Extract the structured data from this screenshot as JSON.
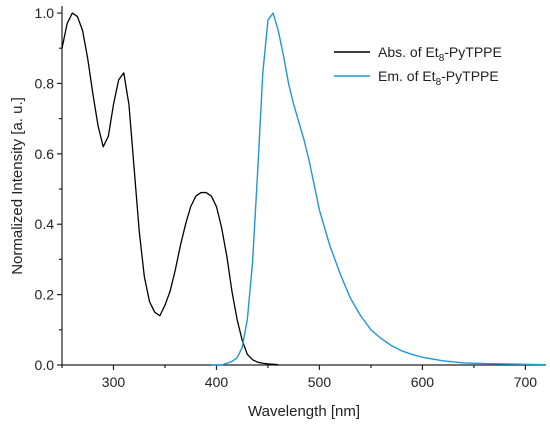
{
  "chart_data": {
    "type": "line",
    "xlabel": "Wavelength [nm]",
    "ylabel": "Normalized Intensity [a. u.]",
    "xlim": [
      250,
      720
    ],
    "ylim": [
      0.0,
      1.02
    ],
    "xticks": [
      300,
      400,
      500,
      600,
      700
    ],
    "xtick_labels": [
      "300",
      "400",
      "500",
      "600",
      "700"
    ],
    "yticks": [
      0.0,
      0.2,
      0.4,
      0.6,
      0.8,
      1.0
    ],
    "ytick_labels": [
      "0.0",
      "0.2",
      "0.4",
      "0.6",
      "0.8",
      "1.0"
    ],
    "legend_position": "top-right",
    "grid": false,
    "series": [
      {
        "name_main": "Abs. of Et",
        "name_sub": "8",
        "name_tail": "-PyTPPE",
        "color": "#000000",
        "x": [
          250,
          255,
          260,
          265,
          270,
          275,
          280,
          285,
          290,
          295,
          300,
          305,
          310,
          315,
          320,
          325,
          330,
          335,
          340,
          345,
          350,
          355,
          360,
          365,
          370,
          375,
          380,
          385,
          390,
          395,
          400,
          405,
          410,
          415,
          420,
          425,
          430,
          435,
          440,
          445,
          450,
          455,
          460
        ],
        "y": [
          0.9,
          0.97,
          1.0,
          0.99,
          0.95,
          0.87,
          0.77,
          0.68,
          0.62,
          0.65,
          0.74,
          0.81,
          0.83,
          0.74,
          0.56,
          0.38,
          0.25,
          0.18,
          0.15,
          0.14,
          0.17,
          0.21,
          0.27,
          0.34,
          0.4,
          0.45,
          0.48,
          0.49,
          0.49,
          0.48,
          0.45,
          0.39,
          0.31,
          0.21,
          0.13,
          0.07,
          0.03,
          0.015,
          0.008,
          0.005,
          0.003,
          0.002,
          0.001
        ]
      },
      {
        "name_main": "Em. of Et",
        "name_sub": "8",
        "name_tail": "-PyTPPE",
        "color": "#1f97d6",
        "x": [
          395,
          405,
          410,
          415,
          420,
          425,
          430,
          435,
          440,
          445,
          450,
          455,
          460,
          465,
          470,
          475,
          480,
          485,
          490,
          495,
          500,
          510,
          520,
          530,
          540,
          550,
          560,
          570,
          580,
          590,
          600,
          620,
          640,
          660,
          680,
          700,
          720
        ],
        "y": [
          0.0,
          0.0,
          0.005,
          0.01,
          0.02,
          0.05,
          0.13,
          0.29,
          0.55,
          0.83,
          0.98,
          1.0,
          0.95,
          0.88,
          0.8,
          0.74,
          0.69,
          0.64,
          0.58,
          0.51,
          0.44,
          0.34,
          0.26,
          0.19,
          0.14,
          0.1,
          0.075,
          0.055,
          0.04,
          0.03,
          0.022,
          0.012,
          0.006,
          0.004,
          0.003,
          0.002,
          0.001
        ]
      }
    ]
  }
}
